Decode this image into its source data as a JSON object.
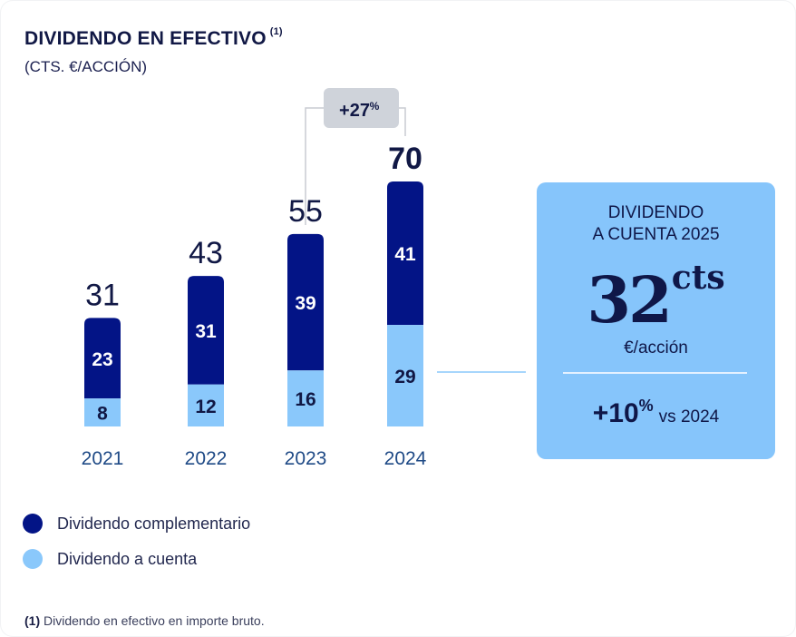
{
  "chart_data": {
    "type": "bar",
    "stacked": true,
    "title": "DIVIDENDO EN EFECTIVO",
    "title_footnote_marker": "(1)",
    "subtitle": "(CTS. €/ACCIÓN)",
    "categories": [
      "2021",
      "2022",
      "2023",
      "2024"
    ],
    "series": [
      {
        "name": "Dividendo a cuenta",
        "color": "#8ac8fb",
        "label_color": "#111845",
        "values": [
          8,
          12,
          16,
          29
        ]
      },
      {
        "name": "Dividendo complementario",
        "color": "#031486",
        "label_color": "#ffffff",
        "values": [
          23,
          31,
          39,
          41
        ]
      }
    ],
    "totals": [
      31,
      43,
      55,
      70
    ],
    "totals_labels": [
      "31",
      "43",
      "55",
      "70"
    ],
    "growth_annotation": {
      "from": "2023",
      "to": "2024",
      "label": "+27",
      "suffix": "%"
    },
    "ylim": [
      0,
      70
    ],
    "grid": false,
    "legend_position": "bottom-left",
    "xlabel": "",
    "ylabel": ""
  },
  "colors": {
    "dark_blue": "#031486",
    "light_blue": "#8ac8fb",
    "card_bg": "#86c5fb",
    "badge_bg": "#cfd3da",
    "text_dark": "#111845"
  },
  "card": {
    "heading_line1": "DIVIDENDO",
    "heading_line2": "A CUENTA 2025",
    "value": "32",
    "unit": "cts",
    "per": "€/acción",
    "growth_value": "+10",
    "growth_suffix": "%",
    "growth_compare": "vs 2024"
  },
  "legend": [
    {
      "label": "Dividendo complementario",
      "color": "#031486"
    },
    {
      "label": "Dividendo a cuenta",
      "color": "#8ac8fb"
    }
  ],
  "footnote": {
    "marker": "(1)",
    "text": " Dividendo en efectivo en importe bruto."
  }
}
